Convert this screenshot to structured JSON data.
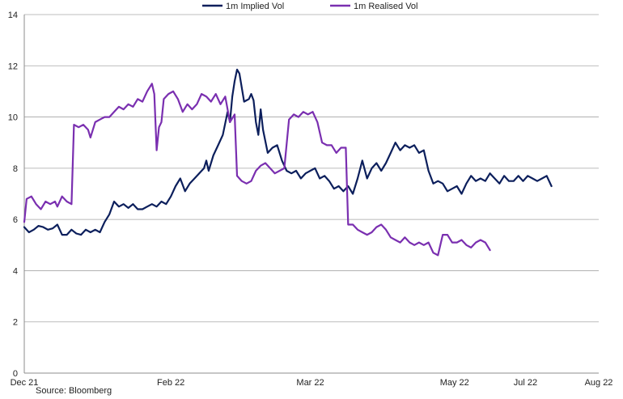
{
  "chart_data": {
    "type": "line",
    "ylim": [
      0,
      14
    ],
    "yticks": [
      0,
      2,
      4,
      6,
      8,
      10,
      12,
      14
    ],
    "xrange": [
      "2021-12-01",
      "2022-08-01"
    ],
    "xticks": [
      {
        "date": "2021-12-01",
        "label": "Dec 21"
      },
      {
        "date": "2022-02-01",
        "label": "Feb 22"
      },
      {
        "date": "2022-04-01",
        "label": "Mar 22"
      },
      {
        "date": "2022-06-01",
        "label": "May 22"
      },
      {
        "date": "2022-07-01",
        "label": "Jul 22"
      },
      {
        "date": "2022-08-01",
        "label": "Aug 22"
      }
    ],
    "grid": "horizontal",
    "legend_position": "top",
    "series": [
      {
        "name": "1m Implied Vol",
        "color": "#0c1f5c",
        "points": [
          [
            "2021-12-01",
            5.7
          ],
          [
            "2021-12-03",
            5.5
          ],
          [
            "2021-12-05",
            5.6
          ],
          [
            "2021-12-07",
            5.75
          ],
          [
            "2021-12-09",
            5.7
          ],
          [
            "2021-12-11",
            5.6
          ],
          [
            "2021-12-13",
            5.65
          ],
          [
            "2021-12-15",
            5.8
          ],
          [
            "2021-12-17",
            5.4
          ],
          [
            "2021-12-19",
            5.4
          ],
          [
            "2021-12-21",
            5.6
          ],
          [
            "2021-12-23",
            5.45
          ],
          [
            "2021-12-25",
            5.4
          ],
          [
            "2021-12-27",
            5.6
          ],
          [
            "2021-12-29",
            5.5
          ],
          [
            "2021-12-31",
            5.6
          ],
          [
            "2022-01-02",
            5.5
          ],
          [
            "2022-01-04",
            5.9
          ],
          [
            "2022-01-06",
            6.2
          ],
          [
            "2022-01-08",
            6.7
          ],
          [
            "2022-01-10",
            6.5
          ],
          [
            "2022-01-12",
            6.6
          ],
          [
            "2022-01-14",
            6.45
          ],
          [
            "2022-01-16",
            6.6
          ],
          [
            "2022-01-18",
            6.4
          ],
          [
            "2022-01-20",
            6.4
          ],
          [
            "2022-01-22",
            6.5
          ],
          [
            "2022-01-24",
            6.6
          ],
          [
            "2022-01-26",
            6.5
          ],
          [
            "2022-01-28",
            6.7
          ],
          [
            "2022-01-30",
            6.6
          ],
          [
            "2022-02-01",
            6.9
          ],
          [
            "2022-02-03",
            7.3
          ],
          [
            "2022-02-05",
            7.6
          ],
          [
            "2022-02-07",
            7.1
          ],
          [
            "2022-02-09",
            7.4
          ],
          [
            "2022-02-11",
            7.6
          ],
          [
            "2022-02-13",
            7.8
          ],
          [
            "2022-02-15",
            8.0
          ],
          [
            "2022-02-16",
            8.3
          ],
          [
            "2022-02-17",
            7.9
          ],
          [
            "2022-02-19",
            8.5
          ],
          [
            "2022-02-21",
            8.9
          ],
          [
            "2022-02-23",
            9.3
          ],
          [
            "2022-02-25",
            10.2
          ],
          [
            "2022-02-26",
            9.8
          ],
          [
            "2022-02-27",
            10.8
          ],
          [
            "2022-02-28",
            11.4
          ],
          [
            "2022-03-01",
            11.85
          ],
          [
            "2022-03-02",
            11.7
          ],
          [
            "2022-03-04",
            10.6
          ],
          [
            "2022-03-06",
            10.7
          ],
          [
            "2022-03-07",
            10.9
          ],
          [
            "2022-03-08",
            10.65
          ],
          [
            "2022-03-09",
            9.8
          ],
          [
            "2022-03-10",
            9.3
          ],
          [
            "2022-03-11",
            10.3
          ],
          [
            "2022-03-12",
            9.5
          ],
          [
            "2022-03-14",
            8.6
          ],
          [
            "2022-03-16",
            8.8
          ],
          [
            "2022-03-18",
            8.9
          ],
          [
            "2022-03-20",
            8.3
          ],
          [
            "2022-03-22",
            7.9
          ],
          [
            "2022-03-24",
            7.8
          ],
          [
            "2022-03-26",
            7.9
          ],
          [
            "2022-03-28",
            7.6
          ],
          [
            "2022-03-30",
            7.8
          ],
          [
            "2022-04-01",
            7.9
          ],
          [
            "2022-04-03",
            8.0
          ],
          [
            "2022-04-05",
            7.6
          ],
          [
            "2022-04-07",
            7.7
          ],
          [
            "2022-04-09",
            7.5
          ],
          [
            "2022-04-11",
            7.2
          ],
          [
            "2022-04-13",
            7.3
          ],
          [
            "2022-04-15",
            7.1
          ],
          [
            "2022-04-17",
            7.3
          ],
          [
            "2022-04-19",
            7.0
          ],
          [
            "2022-04-21",
            7.6
          ],
          [
            "2022-04-23",
            8.3
          ],
          [
            "2022-04-25",
            7.6
          ],
          [
            "2022-04-27",
            8.0
          ],
          [
            "2022-04-29",
            8.2
          ],
          [
            "2022-05-01",
            7.9
          ],
          [
            "2022-05-03",
            8.2
          ],
          [
            "2022-05-05",
            8.6
          ],
          [
            "2022-05-07",
            9.0
          ],
          [
            "2022-05-09",
            8.7
          ],
          [
            "2022-05-11",
            8.9
          ],
          [
            "2022-05-13",
            8.8
          ],
          [
            "2022-05-15",
            8.9
          ],
          [
            "2022-05-17",
            8.6
          ],
          [
            "2022-05-19",
            8.7
          ],
          [
            "2022-05-21",
            7.9
          ],
          [
            "2022-05-23",
            7.4
          ],
          [
            "2022-05-25",
            7.5
          ],
          [
            "2022-05-27",
            7.4
          ],
          [
            "2022-05-29",
            7.1
          ],
          [
            "2022-05-31",
            7.2
          ],
          [
            "2022-06-02",
            7.3
          ],
          [
            "2022-06-04",
            7.0
          ],
          [
            "2022-06-06",
            7.4
          ],
          [
            "2022-06-08",
            7.7
          ],
          [
            "2022-06-10",
            7.5
          ],
          [
            "2022-06-12",
            7.6
          ],
          [
            "2022-06-14",
            7.5
          ],
          [
            "2022-06-16",
            7.8
          ],
          [
            "2022-06-18",
            7.6
          ],
          [
            "2022-06-20",
            7.4
          ],
          [
            "2022-06-22",
            7.7
          ],
          [
            "2022-06-24",
            7.5
          ],
          [
            "2022-06-26",
            7.5
          ],
          [
            "2022-06-28",
            7.7
          ],
          [
            "2022-06-30",
            7.5
          ],
          [
            "2022-07-02",
            7.7
          ],
          [
            "2022-07-04",
            7.6
          ],
          [
            "2022-07-06",
            7.5
          ],
          [
            "2022-07-08",
            7.6
          ],
          [
            "2022-07-10",
            7.7
          ],
          [
            "2022-07-12",
            7.3
          ]
        ]
      },
      {
        "name": "1m Realised Vol",
        "color": "#7a2fb0",
        "points": [
          [
            "2021-12-01",
            5.9
          ],
          [
            "2021-12-02",
            6.8
          ],
          [
            "2021-12-04",
            6.9
          ],
          [
            "2021-12-06",
            6.6
          ],
          [
            "2021-12-08",
            6.4
          ],
          [
            "2021-12-10",
            6.7
          ],
          [
            "2021-12-12",
            6.6
          ],
          [
            "2021-12-14",
            6.7
          ],
          [
            "2021-12-15",
            6.5
          ],
          [
            "2021-12-17",
            6.9
          ],
          [
            "2021-12-19",
            6.7
          ],
          [
            "2021-12-21",
            6.6
          ],
          [
            "2021-12-22",
            9.7
          ],
          [
            "2021-12-24",
            9.6
          ],
          [
            "2021-12-26",
            9.7
          ],
          [
            "2021-12-28",
            9.5
          ],
          [
            "2021-12-29",
            9.2
          ],
          [
            "2021-12-31",
            9.8
          ],
          [
            "2022-01-02",
            9.9
          ],
          [
            "2022-01-04",
            10.0
          ],
          [
            "2022-01-06",
            10.0
          ],
          [
            "2022-01-08",
            10.2
          ],
          [
            "2022-01-10",
            10.4
          ],
          [
            "2022-01-12",
            10.3
          ],
          [
            "2022-01-14",
            10.5
          ],
          [
            "2022-01-16",
            10.4
          ],
          [
            "2022-01-18",
            10.7
          ],
          [
            "2022-01-20",
            10.6
          ],
          [
            "2022-01-22",
            11.0
          ],
          [
            "2022-01-24",
            11.3
          ],
          [
            "2022-01-25",
            10.9
          ],
          [
            "2022-01-26",
            8.7
          ],
          [
            "2022-01-27",
            9.6
          ],
          [
            "2022-01-28",
            9.8
          ],
          [
            "2022-01-29",
            10.7
          ],
          [
            "2022-01-31",
            10.9
          ],
          [
            "2022-02-02",
            11.0
          ],
          [
            "2022-02-04",
            10.7
          ],
          [
            "2022-02-06",
            10.2
          ],
          [
            "2022-02-08",
            10.5
          ],
          [
            "2022-02-10",
            10.3
          ],
          [
            "2022-02-12",
            10.5
          ],
          [
            "2022-02-14",
            10.9
          ],
          [
            "2022-02-16",
            10.8
          ],
          [
            "2022-02-18",
            10.6
          ],
          [
            "2022-02-20",
            10.9
          ],
          [
            "2022-02-22",
            10.5
          ],
          [
            "2022-02-24",
            10.8
          ],
          [
            "2022-02-26",
            9.8
          ],
          [
            "2022-02-28",
            10.1
          ],
          [
            "2022-03-01",
            7.7
          ],
          [
            "2022-03-03",
            7.5
          ],
          [
            "2022-03-05",
            7.4
          ],
          [
            "2022-03-07",
            7.5
          ],
          [
            "2022-03-09",
            7.9
          ],
          [
            "2022-03-11",
            8.1
          ],
          [
            "2022-03-13",
            8.2
          ],
          [
            "2022-03-15",
            8.0
          ],
          [
            "2022-03-17",
            7.8
          ],
          [
            "2022-03-19",
            7.9
          ],
          [
            "2022-03-21",
            8.0
          ],
          [
            "2022-03-23",
            9.9
          ],
          [
            "2022-03-25",
            10.1
          ],
          [
            "2022-03-27",
            10.0
          ],
          [
            "2022-03-29",
            10.2
          ],
          [
            "2022-03-31",
            10.1
          ],
          [
            "2022-04-02",
            10.2
          ],
          [
            "2022-04-04",
            9.8
          ],
          [
            "2022-04-06",
            9.0
          ],
          [
            "2022-04-08",
            8.9
          ],
          [
            "2022-04-10",
            8.9
          ],
          [
            "2022-04-12",
            8.6
          ],
          [
            "2022-04-14",
            8.8
          ],
          [
            "2022-04-16",
            8.8
          ],
          [
            "2022-04-17",
            5.8
          ],
          [
            "2022-04-19",
            5.8
          ],
          [
            "2022-04-21",
            5.6
          ],
          [
            "2022-04-23",
            5.5
          ],
          [
            "2022-04-25",
            5.4
          ],
          [
            "2022-04-27",
            5.5
          ],
          [
            "2022-04-29",
            5.7
          ],
          [
            "2022-05-01",
            5.8
          ],
          [
            "2022-05-03",
            5.6
          ],
          [
            "2022-05-05",
            5.3
          ],
          [
            "2022-05-07",
            5.2
          ],
          [
            "2022-05-09",
            5.1
          ],
          [
            "2022-05-11",
            5.3
          ],
          [
            "2022-05-13",
            5.1
          ],
          [
            "2022-05-15",
            5.0
          ],
          [
            "2022-05-17",
            5.1
          ],
          [
            "2022-05-19",
            5.0
          ],
          [
            "2022-05-21",
            5.1
          ],
          [
            "2022-05-23",
            4.7
          ],
          [
            "2022-05-25",
            4.6
          ],
          [
            "2022-05-27",
            5.4
          ],
          [
            "2022-05-29",
            5.4
          ],
          [
            "2022-05-31",
            5.1
          ],
          [
            "2022-06-02",
            5.1
          ],
          [
            "2022-06-04",
            5.2
          ],
          [
            "2022-06-06",
            5.0
          ],
          [
            "2022-06-08",
            4.9
          ],
          [
            "2022-06-10",
            5.1
          ],
          [
            "2022-06-12",
            5.2
          ],
          [
            "2022-06-14",
            5.1
          ],
          [
            "2022-06-16",
            4.8
          ]
        ]
      }
    ]
  },
  "source": "Source: Bloomberg"
}
